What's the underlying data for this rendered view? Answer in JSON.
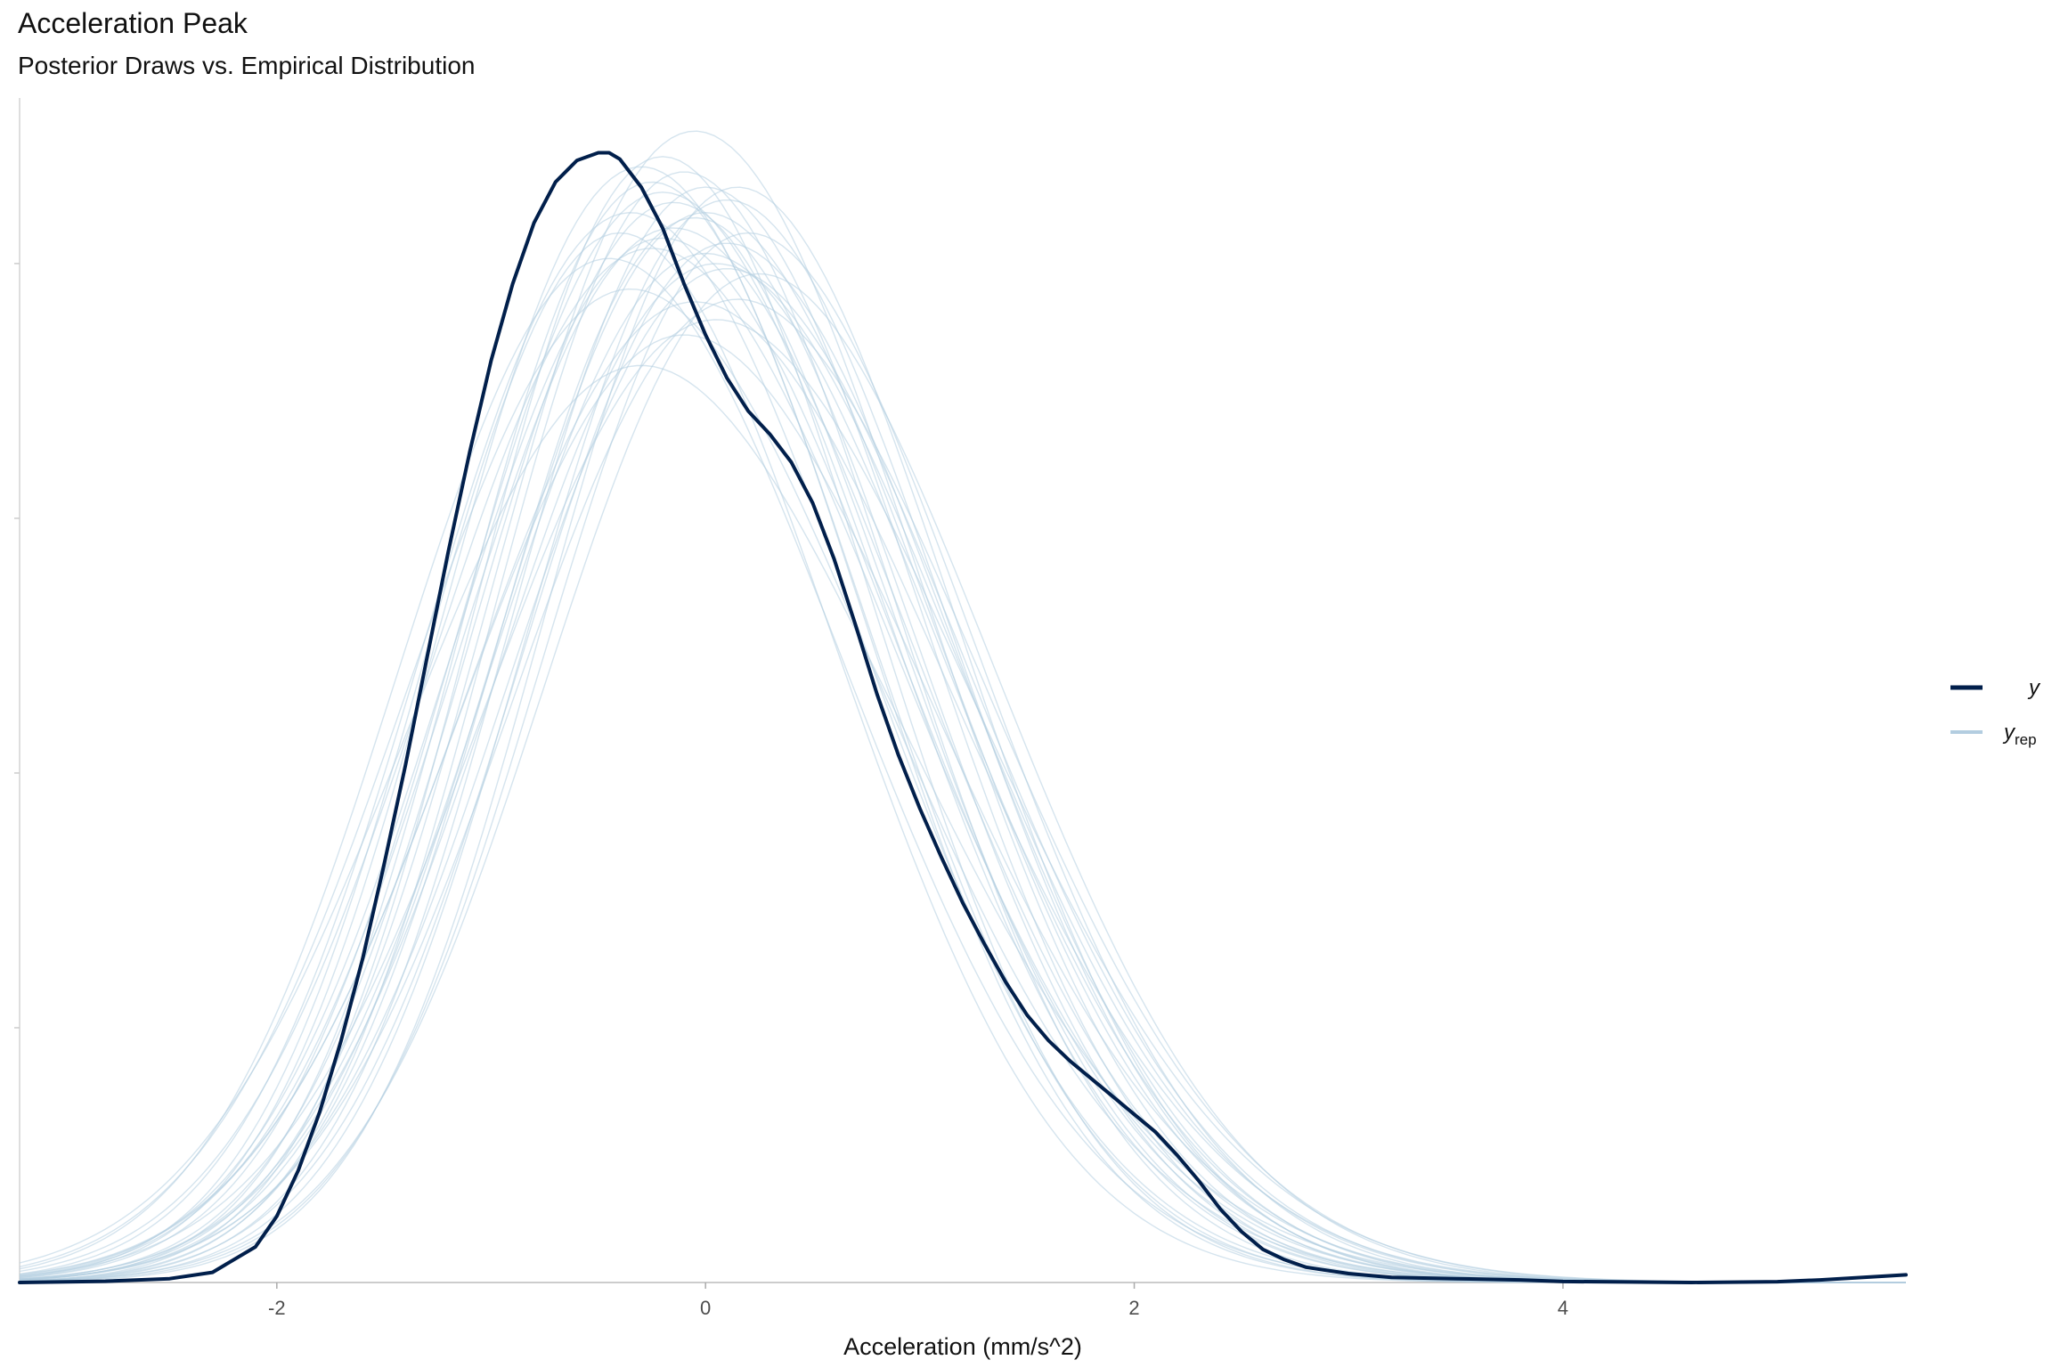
{
  "chart_data": {
    "type": "line",
    "title": "Acceleration Peak",
    "subtitle": "Posterior Draws vs. Empirical Distribution",
    "xlabel": "Acceleration (mm/s^2)",
    "ylabel": "",
    "xlim": [
      -3.2,
      5.6
    ],
    "ylim": [
      0,
      0.465
    ],
    "x_ticks": [
      -2,
      0,
      2,
      4
    ],
    "x_tick_labels": [
      "-2",
      "0",
      "2",
      "4"
    ],
    "y_ticks": [
      0.1,
      0.2,
      0.3,
      0.4
    ],
    "y_tick_labels": [],
    "grid": false,
    "legend_position": "right",
    "legend": [
      {
        "name": "y",
        "color": "#011f4b",
        "sub": ""
      },
      {
        "name": "y",
        "color": "#b3cde0",
        "sub": "rep"
      }
    ],
    "series": [
      {
        "name": "y",
        "color": "#011f4b",
        "x": [
          -3.2,
          -2.8,
          -2.5,
          -2.3,
          -2.1,
          -2.0,
          -1.9,
          -1.8,
          -1.7,
          -1.6,
          -1.5,
          -1.4,
          -1.3,
          -1.2,
          -1.1,
          -1.0,
          -0.9,
          -0.8,
          -0.7,
          -0.6,
          -0.5,
          -0.45,
          -0.4,
          -0.3,
          -0.2,
          -0.1,
          0.0,
          0.1,
          0.2,
          0.3,
          0.4,
          0.5,
          0.6,
          0.7,
          0.8,
          0.9,
          1.0,
          1.1,
          1.2,
          1.3,
          1.4,
          1.5,
          1.6,
          1.7,
          1.8,
          1.9,
          2.0,
          2.1,
          2.2,
          2.3,
          2.4,
          2.5,
          2.6,
          2.7,
          2.8,
          3.0,
          3.2,
          3.5,
          3.8,
          4.0,
          4.3,
          4.6,
          5.0,
          5.2,
          5.4,
          5.6
        ],
        "y": [
          0.0,
          0.0005,
          0.0015,
          0.004,
          0.014,
          0.026,
          0.044,
          0.067,
          0.095,
          0.127,
          0.164,
          0.203,
          0.245,
          0.287,
          0.326,
          0.362,
          0.392,
          0.416,
          0.432,
          0.4405,
          0.4435,
          0.4435,
          0.441,
          0.43,
          0.414,
          0.392,
          0.372,
          0.355,
          0.342,
          0.333,
          0.322,
          0.306,
          0.284,
          0.258,
          0.231,
          0.207,
          0.186,
          0.167,
          0.149,
          0.133,
          0.118,
          0.105,
          0.095,
          0.087,
          0.08,
          0.073,
          0.066,
          0.059,
          0.05,
          0.04,
          0.029,
          0.02,
          0.013,
          0.009,
          0.006,
          0.0035,
          0.002,
          0.0015,
          0.001,
          0.0004,
          0.0002,
          0.0,
          0.0003,
          0.001,
          0.002,
          0.003
        ]
      },
      {
        "name": "y",
        "color": "#b3cde0",
        "draws": [
          {
            "mu": -0.05,
            "sigma": 1.0,
            "peak": 0.452
          },
          {
            "mu": -0.2,
            "sigma": 1.0,
            "peak": 0.428
          },
          {
            "mu": -0.3,
            "sigma": 0.97,
            "peak": 0.438
          },
          {
            "mu": 0.1,
            "sigma": 0.98,
            "peak": 0.425
          },
          {
            "mu": -0.15,
            "sigma": 1.05,
            "peak": 0.414
          },
          {
            "mu": -0.4,
            "sigma": 0.95,
            "peak": 0.412
          },
          {
            "mu": 0.15,
            "sigma": 0.96,
            "peak": 0.43
          },
          {
            "mu": -0.25,
            "sigma": 1.08,
            "peak": 0.406
          },
          {
            "mu": 0.0,
            "sigma": 1.02,
            "peak": 0.42
          },
          {
            "mu": -0.1,
            "sigma": 0.94,
            "peak": 0.436
          },
          {
            "mu": 0.05,
            "sigma": 1.07,
            "peak": 0.4
          },
          {
            "mu": -0.35,
            "sigma": 1.01,
            "peak": 0.42
          },
          {
            "mu": 0.2,
            "sigma": 1.0,
            "peak": 0.412
          },
          {
            "mu": -0.05,
            "sigma": 1.12,
            "peak": 0.385
          },
          {
            "mu": -0.2,
            "sigma": 0.92,
            "peak": 0.442
          },
          {
            "mu": 0.1,
            "sigma": 1.06,
            "peak": 0.398
          },
          {
            "mu": -0.45,
            "sigma": 1.03,
            "peak": 0.402
          },
          {
            "mu": -0.1,
            "sigma": 1.1,
            "peak": 0.372
          },
          {
            "mu": 0.0,
            "sigma": 0.96,
            "peak": 0.43
          },
          {
            "mu": -0.3,
            "sigma": 1.15,
            "peak": 0.36
          },
          {
            "mu": 0.25,
            "sigma": 1.04,
            "peak": 0.396
          },
          {
            "mu": -0.15,
            "sigma": 0.99,
            "peak": 0.424
          },
          {
            "mu": 0.05,
            "sigma": 1.13,
            "peak": 0.378
          },
          {
            "mu": -0.25,
            "sigma": 0.93,
            "peak": 0.432
          },
          {
            "mu": 0.1,
            "sigma": 1.01,
            "peak": 0.408
          },
          {
            "mu": -0.35,
            "sigma": 1.09,
            "peak": 0.39
          },
          {
            "mu": 0.0,
            "sigma": 1.05,
            "peak": 0.404
          },
          {
            "mu": -0.05,
            "sigma": 0.97,
            "peak": 0.418
          },
          {
            "mu": 0.15,
            "sigma": 1.09,
            "peak": 0.386
          },
          {
            "mu": -0.2,
            "sigma": 1.04,
            "peak": 0.41
          }
        ]
      }
    ]
  }
}
